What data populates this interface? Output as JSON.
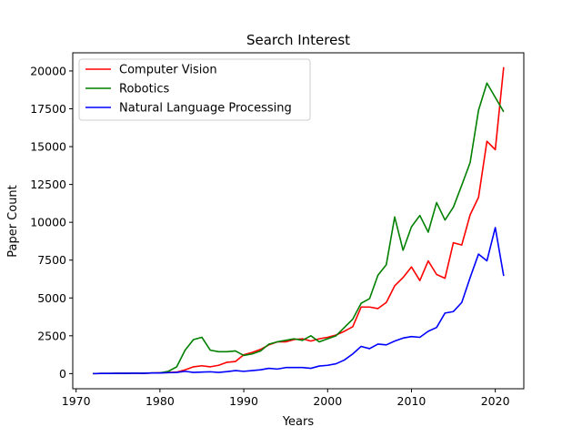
{
  "chart_data": {
    "type": "line",
    "title": "Search Interest",
    "xlabel": "Years",
    "ylabel": "Paper Count",
    "xlim": [
      1969.6,
      2023.4
    ],
    "ylim": [
      -1000,
      21200
    ],
    "xticks": [
      1970,
      1980,
      1990,
      2000,
      2010,
      2020
    ],
    "yticks": [
      0,
      2500,
      5000,
      7500,
      10000,
      12500,
      15000,
      17500,
      20000
    ],
    "grid": false,
    "legend_position": "top-left",
    "x": [
      1972,
      1973,
      1974,
      1975,
      1976,
      1977,
      1978,
      1979,
      1980,
      1981,
      1982,
      1983,
      1984,
      1985,
      1986,
      1987,
      1988,
      1989,
      1990,
      1991,
      1992,
      1993,
      1994,
      1995,
      1996,
      1997,
      1998,
      1999,
      2000,
      2001,
      2002,
      2003,
      2004,
      2005,
      2006,
      2007,
      2008,
      2009,
      2010,
      2011,
      2012,
      2013,
      2014,
      2015,
      2016,
      2017,
      2018,
      2019,
      2020,
      2021
    ],
    "series": [
      {
        "name": "Computer Vision",
        "color": "#ff0000",
        "values": [
          0,
          10,
          10,
          20,
          20,
          30,
          20,
          40,
          60,
          80,
          100,
          250,
          450,
          520,
          450,
          550,
          750,
          800,
          1250,
          1400,
          1600,
          1900,
          2100,
          2100,
          2250,
          2300,
          2150,
          2300,
          2400,
          2550,
          2800,
          3100,
          4400,
          4400,
          4300,
          4700,
          5800,
          6350,
          7050,
          6150,
          7450,
          6550,
          6300,
          8650,
          8500,
          10500,
          11650,
          15350,
          14800,
          20250
        ]
      },
      {
        "name": "Robotics",
        "color": "#008000",
        "values": [
          0,
          10,
          10,
          20,
          20,
          30,
          30,
          40,
          50,
          150,
          450,
          1550,
          2250,
          2400,
          1550,
          1450,
          1450,
          1500,
          1200,
          1300,
          1500,
          1950,
          2100,
          2200,
          2300,
          2200,
          2500,
          2100,
          2300,
          2500,
          3050,
          3600,
          4650,
          4950,
          6500,
          7200,
          10350,
          8150,
          9700,
          10450,
          9350,
          11300,
          10150,
          11000,
          12450,
          13950,
          17400,
          19200,
          18250,
          17300
        ]
      },
      {
        "name": "Natural Language Processing",
        "color": "#0000ff",
        "values": [
          0,
          10,
          10,
          20,
          20,
          30,
          20,
          40,
          40,
          60,
          80,
          150,
          80,
          100,
          120,
          80,
          130,
          200,
          150,
          200,
          250,
          350,
          300,
          400,
          400,
          400,
          350,
          500,
          550,
          650,
          900,
          1300,
          1800,
          1650,
          1950,
          1900,
          2150,
          2350,
          2450,
          2400,
          2800,
          3050,
          4000,
          4100,
          4700,
          6350,
          7900,
          7450,
          9650,
          6450
        ]
      }
    ]
  }
}
